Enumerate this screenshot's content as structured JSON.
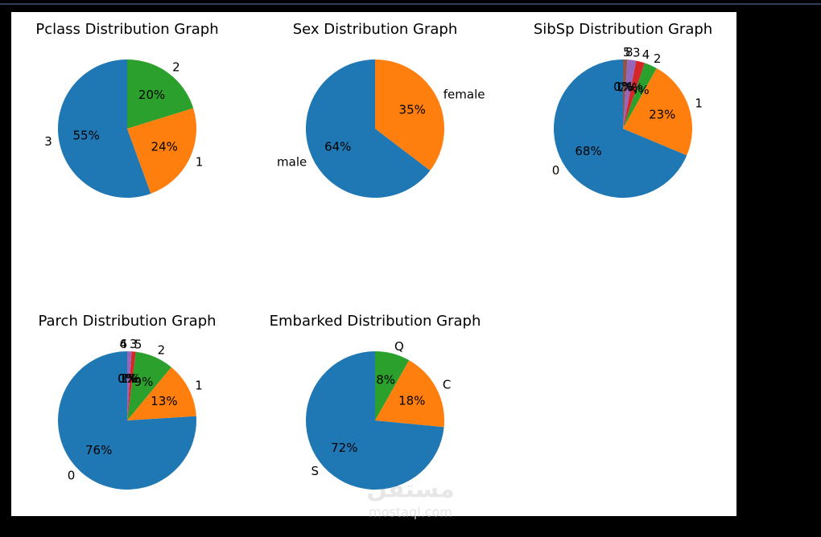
{
  "chart_data": [
    {
      "type": "pie",
      "title": "Pclass Distribution Graph",
      "categories": [
        "3",
        "1",
        "2"
      ],
      "values": [
        55,
        24,
        20
      ],
      "value_labels": [
        "55%",
        "24%",
        "20%"
      ],
      "colors": [
        "#1f77b4",
        "#ff7f0e",
        "#2ca02c"
      ]
    },
    {
      "type": "pie",
      "title": "Sex Distribution Graph",
      "categories": [
        "male",
        "female"
      ],
      "values": [
        64,
        35
      ],
      "value_labels": [
        "64%",
        "35%"
      ],
      "colors": [
        "#1f77b4",
        "#ff7f0e"
      ]
    },
    {
      "type": "pie",
      "title": "SibSp Distribution Graph",
      "categories": [
        "0",
        "1",
        "2",
        "4",
        "3",
        "8",
        "5"
      ],
      "values": [
        68,
        23,
        3,
        2,
        2,
        1,
        0
      ],
      "value_labels": [
        "68%",
        "23%",
        "3%",
        "2%",
        "2%",
        "1%",
        "0%"
      ],
      "colors": [
        "#1f77b4",
        "#ff7f0e",
        "#2ca02c",
        "#d62728",
        "#9467bd",
        "#8c564b",
        "#e377c2"
      ]
    },
    {
      "type": "pie",
      "title": "Parch Distribution Graph",
      "categories": [
        "0",
        "1",
        "2",
        "5",
        "3",
        "4",
        "6"
      ],
      "values": [
        76,
        13,
        9,
        1,
        1,
        0,
        0
      ],
      "value_labels": [
        "76%",
        "13%",
        "9%",
        "1%",
        "1%",
        "0%",
        "0%"
      ],
      "colors": [
        "#1f77b4",
        "#ff7f0e",
        "#2ca02c",
        "#d62728",
        "#9467bd",
        "#8c564b",
        "#e377c2"
      ]
    },
    {
      "type": "pie",
      "title": "Embarked Distribution Graph",
      "categories": [
        "S",
        "C",
        "Q"
      ],
      "values": [
        72,
        18,
        8
      ],
      "value_labels": [
        "72%",
        "18%",
        "8%"
      ],
      "colors": [
        "#1f77b4",
        "#ff7f0e",
        "#2ca02c"
      ]
    }
  ],
  "watermark": {
    "logo": "مستقل",
    "url": "mostaql.com"
  }
}
